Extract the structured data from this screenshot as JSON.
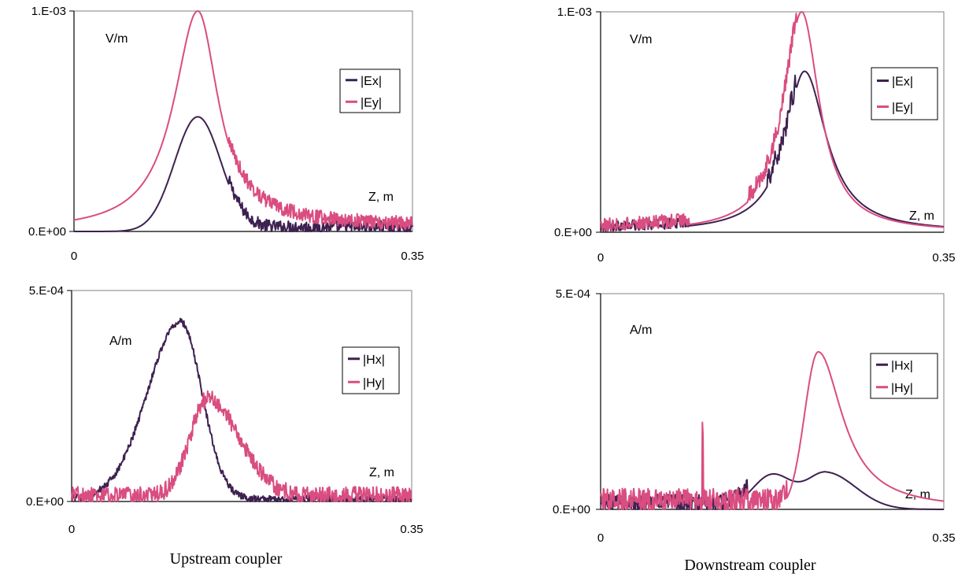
{
  "captions": {
    "left": "Upstream coupler",
    "right": "Downstream coupler"
  },
  "colors": {
    "x": "#3d2150",
    "y": "#d94d80",
    "axis": "#000000",
    "frame": "#808080"
  },
  "chart_data": [
    {
      "id": "upstream-e",
      "type": "line",
      "ylim": [
        0,
        0.001
      ],
      "xlim": [
        0,
        0.35
      ],
      "yticks": [
        "0.E+00",
        "1.E-03"
      ],
      "xticks": [
        "0",
        "0.35"
      ],
      "unit_label": "V/m",
      "axis_annotation": "Z, m",
      "series": [
        {
          "name": "|Ex|",
          "color_key": "x",
          "peak": {
            "z": 0.128,
            "amp": 0.00052,
            "sigma_left": 0.024,
            "sigma_right": 0.024,
            "type": "gauss"
          },
          "noise": [
            {
              "from": 0.16,
              "to": 0.35,
              "amp": 3.5e-05
            }
          ]
        },
        {
          "name": "|Ey|",
          "color_key": "y",
          "peak": {
            "z": 0.128,
            "amp": 0.001,
            "gamma_left": 0.03,
            "gamma_right": 0.026,
            "type": "lorentz"
          },
          "noise": [
            {
              "from": 0.16,
              "to": 0.35,
              "amp": 4e-05
            }
          ]
        }
      ]
    },
    {
      "id": "downstream-e",
      "type": "line",
      "ylim": [
        0,
        0.001
      ],
      "xlim": [
        0,
        0.35
      ],
      "yticks": [
        "0.E+00",
        "1.E-03"
      ],
      "xticks": [
        "0",
        "0.35"
      ],
      "unit_label": "V/m",
      "axis_annotation": "Z, m",
      "series": [
        {
          "name": "|Ex|",
          "color_key": "x",
          "peak": {
            "z": 0.208,
            "amp": 0.00073,
            "gamma_left": 0.024,
            "gamma_right": 0.027,
            "type": "lorentz"
          },
          "noise": [
            {
              "from": 0.0,
              "to": 0.09,
              "amp": 3e-05
            },
            {
              "from": 0.17,
              "to": 0.2,
              "amp": 6e-05
            }
          ]
        },
        {
          "name": "|Ey|",
          "color_key": "y",
          "peak": {
            "z": 0.205,
            "amp": 0.001,
            "gamma_left": 0.022,
            "gamma_right": 0.022,
            "type": "lorentz"
          },
          "noise": [
            {
              "from": 0.0,
              "to": 0.09,
              "amp": 4e-05
            },
            {
              "from": 0.15,
              "to": 0.2,
              "amp": 5e-05
            }
          ]
        }
      ]
    },
    {
      "id": "upstream-h",
      "type": "line",
      "ylim": [
        0,
        0.0005
      ],
      "xlim": [
        0,
        0.35
      ],
      "yticks": [
        "0.E+00",
        "5.E-04"
      ],
      "xticks": [
        "0",
        "0.35"
      ],
      "unit_label": "A/m",
      "axis_annotation": "Z, m",
      "series": [
        {
          "name": "|Hx|",
          "color_key": "x",
          "peak": {
            "z": 0.112,
            "amp": 0.00042,
            "sigma_left": 0.034,
            "sigma_right": 0.022,
            "type": "gauss"
          },
          "noise": [
            {
              "from": 0.0,
              "to": 0.35,
              "amp": 1e-05
            }
          ]
        },
        {
          "name": "|Hy|",
          "color_key": "y",
          "peak": {
            "z": 0.14,
            "amp": 0.00023,
            "sigma_left": 0.018,
            "sigma_right": 0.032,
            "type": "gauss"
          },
          "noise": [
            {
              "from": 0.0,
              "to": 0.35,
              "amp": 2.5e-05
            }
          ]
        }
      ]
    },
    {
      "id": "downstream-h",
      "type": "line",
      "ylim": [
        0,
        0.0005
      ],
      "xlim": [
        0,
        0.35
      ],
      "yticks": [
        "0.E+00",
        "5.E-04"
      ],
      "xticks": [
        "0",
        "0.35"
      ],
      "unit_label": "A/m",
      "axis_annotation": "Z, m",
      "series": [
        {
          "name": "|Hx|",
          "color_key": "x",
          "peak": {
            "z": 0.23,
            "amp": 8.5e-05,
            "sigma_left": 0.02,
            "sigma_right": 0.03,
            "type": "gauss"
          },
          "bump": {
            "z": 0.175,
            "amp": 8e-05,
            "sigma": 0.02
          },
          "noise": [
            {
              "from": 0.0,
              "to": 0.15,
              "amp": 2.5e-05
            }
          ]
        },
        {
          "name": "|Hy|",
          "color_key": "y",
          "peak": {
            "z": 0.222,
            "amp": 0.000365,
            "sigma_left": 0.014,
            "gamma_right": 0.03,
            "type": "mixed"
          },
          "spike": {
            "z": 0.104,
            "amp": 0.00017
          },
          "noise": [
            {
              "from": 0.0,
              "to": 0.19,
              "amp": 3.5e-05
            }
          ]
        }
      ]
    }
  ]
}
